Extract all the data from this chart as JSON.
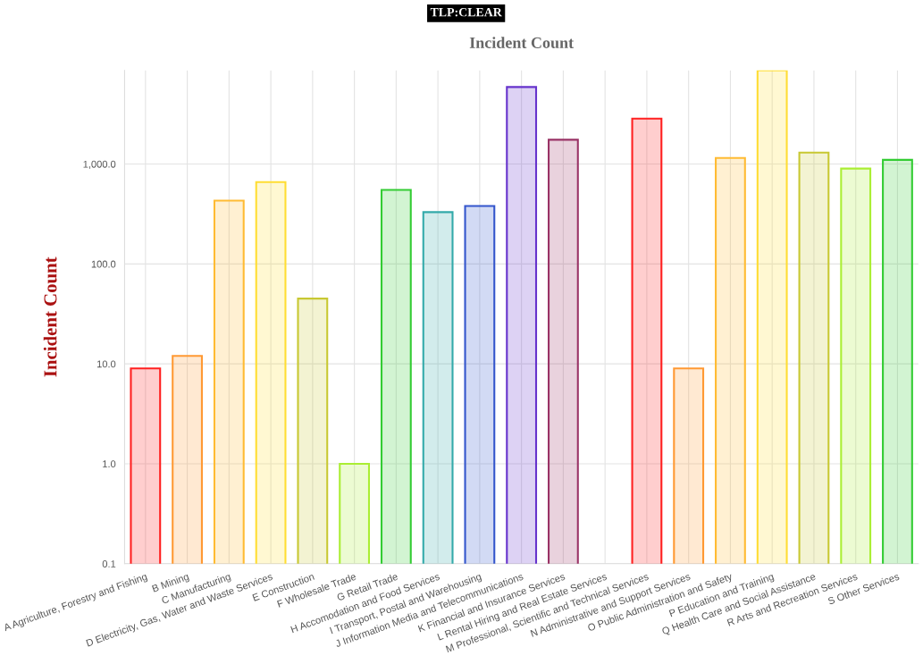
{
  "chart_data": {
    "type": "bar",
    "title": "Incident Count",
    "ylabel": "Incident Count",
    "annotations": [
      "TLP:CLEAR"
    ],
    "categories": [
      "A Agriculture, Forestry and Fishing",
      "B Mining",
      "C Manufacturing",
      "D Electricity, Gas, Water and Waste Services",
      "E Construction",
      "F Wholesale Trade",
      "G Retail Trade",
      "H Accomodation and Food Services",
      "I Transport, Postal and Warehousing",
      "J Information Media and Telecommunications",
      "K Financial and Insurance Services",
      "L Rental Hiring and Real Estate Services",
      "M Professional, Scientific and Technical Services",
      "N Administrative and Support Services",
      "O Public Administration and Safety",
      "P Education and Training",
      "Q Health Care and Social Assistance",
      "R Arts and Recreation Services",
      "S Other Services"
    ],
    "values": [
      9,
      12,
      430,
      660,
      45,
      1,
      550,
      330,
      380,
      5900,
      1750,
      null,
      2850,
      9,
      1150,
      8650,
      1300,
      900,
      1100
    ],
    "colors": [
      "#ff2020",
      "#ff9933",
      "#ffbb33",
      "#ffdd33",
      "#c8c832",
      "#aaee33",
      "#33cc33",
      "#33aaaa",
      "#3355cc",
      "#6633cc",
      "#993366",
      "#ff2020",
      "#ff2020",
      "#ff9933",
      "#ffbb33",
      "#ffdd33",
      "#c8c832",
      "#aaee33",
      "#33cc33"
    ],
    "log": "y",
    "ylim": [
      0.1,
      8650
    ],
    "yticks": [
      {
        "value": 0.1,
        "label": "0.1"
      },
      {
        "value": 1,
        "label": "1.0"
      },
      {
        "value": 10,
        "label": "10.0"
      },
      {
        "value": 100,
        "label": "100.0"
      },
      {
        "value": 1000,
        "label": "1,000.0"
      }
    ],
    "grid": true,
    "legend": false
  }
}
